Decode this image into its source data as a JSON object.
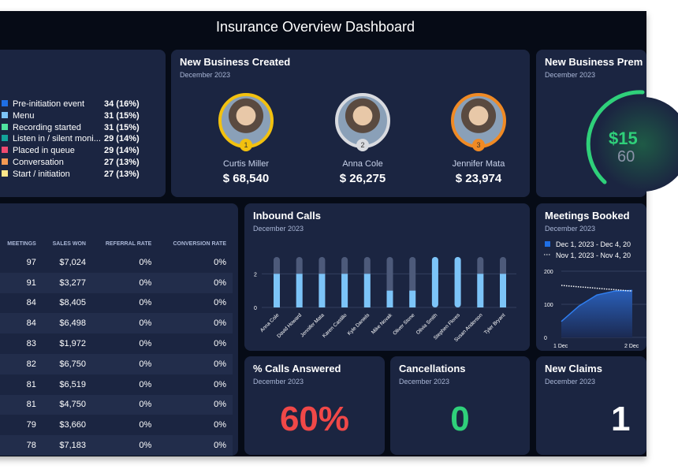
{
  "header": {
    "title": "Insurance Overview Dashboard"
  },
  "legend_card": {
    "items": [
      {
        "label": "Pre-initiation event",
        "value": "34 (16%)",
        "color": "#1f6fe5"
      },
      {
        "label": "Menu",
        "value": "31 (15%)",
        "color": "#7cc4f8"
      },
      {
        "label": "Recording started",
        "value": "31 (15%)",
        "color": "#4fe3a0"
      },
      {
        "label": "Listen in / silent moni...",
        "value": "29 (14%)",
        "color": "#13a39a"
      },
      {
        "label": "Placed in queue",
        "value": "29 (14%)",
        "color": "#ef4a6f"
      },
      {
        "label": "Conversation",
        "value": "27 (13%)",
        "color": "#f59a53"
      },
      {
        "label": "Start / initiation",
        "value": "27 (13%)",
        "color": "#fde68a"
      }
    ]
  },
  "new_business": {
    "title": "New Business Created",
    "subtitle": "December 2023",
    "podium": [
      {
        "rank": "2",
        "name": "Anna Cole",
        "value": "$ 26,275",
        "color": "#d9dbe0"
      },
      {
        "rank": "1",
        "name": "Curtis Miller",
        "value": "$ 68,540",
        "color": "#f2c10f"
      },
      {
        "rank": "3",
        "name": "Jennifer Mata",
        "value": "$ 23,974",
        "color": "#f08a24"
      }
    ]
  },
  "premium": {
    "title": "New Business Prem",
    "subtitle": "December 2023",
    "value": "$15",
    "sub_value": "60",
    "color": "#2fd07a"
  },
  "table": {
    "columns": [
      "MEETINGS",
      "SALES WON",
      "REFERRAL RATE",
      "CONVERSION RATE"
    ],
    "rows": [
      [
        "97",
        "$7,024",
        "0%",
        "0%"
      ],
      [
        "91",
        "$3,277",
        "0%",
        "0%"
      ],
      [
        "84",
        "$8,405",
        "0%",
        "0%"
      ],
      [
        "84",
        "$6,498",
        "0%",
        "0%"
      ],
      [
        "83",
        "$1,972",
        "0%",
        "0%"
      ],
      [
        "82",
        "$6,750",
        "0%",
        "0%"
      ],
      [
        "81",
        "$6,519",
        "0%",
        "0%"
      ],
      [
        "81",
        "$4,750",
        "0%",
        "0%"
      ],
      [
        "79",
        "$3,660",
        "0%",
        "0%"
      ],
      [
        "78",
        "$7,183",
        "0%",
        "0%"
      ]
    ]
  },
  "inbound": {
    "title": "Inbound Calls",
    "subtitle": "December 2023"
  },
  "meetings": {
    "title": "Meetings Booked",
    "subtitle": "December 2023"
  },
  "calls_answered": {
    "title": "% Calls Answered",
    "subtitle": "December 2023",
    "value": "60%",
    "color": "#f04848"
  },
  "cancellations": {
    "title": "Cancellations",
    "subtitle": "December 2023",
    "value": "0",
    "color": "#2fd07a"
  },
  "claims": {
    "title": "New Claims",
    "subtitle": "December 2023",
    "value": "1"
  },
  "chart_data": [
    {
      "type": "bar",
      "title": "Inbound Calls",
      "categories": [
        "Anna Cole",
        "David Howard",
        "Jennifer Mata",
        "Karen Castillo",
        "Kyle Daniels",
        "Mike Novak",
        "Oliver Stone",
        "Olivia Smith",
        "Stephen Flores",
        "Susan Anderson",
        "Tyler Bryant"
      ],
      "values": [
        2,
        2,
        2,
        2,
        2,
        1,
        1,
        3,
        3,
        2,
        2
      ],
      "max": 3,
      "yticks": [
        "0",
        "2"
      ],
      "ylim": [
        0,
        3
      ],
      "grid": true,
      "color": "#7cc4f8"
    },
    {
      "type": "area",
      "title": "Meetings Booked",
      "legend": [
        "Dec 1, 2023 - Dec 4, 20",
        "Nov 1, 2023 - Nov 4, 20"
      ],
      "xticks": [
        "1 Dec",
        "2 Dec"
      ],
      "yticks": [
        "0",
        "100",
        "200"
      ],
      "ylim": [
        0,
        200
      ],
      "legend_placement": "top",
      "series": [
        {
          "name": "Dec 1, 2023 - Dec 4, 20",
          "x": [
            0,
            0.25,
            0.5,
            0.75,
            1
          ],
          "values": [
            48,
            95,
            128,
            140,
            142
          ]
        },
        {
          "name": "Nov 1, 2023 - Nov 4, 20",
          "x": [
            0,
            1
          ],
          "values": [
            157,
            140
          ],
          "style": "dotted"
        }
      ]
    }
  ]
}
